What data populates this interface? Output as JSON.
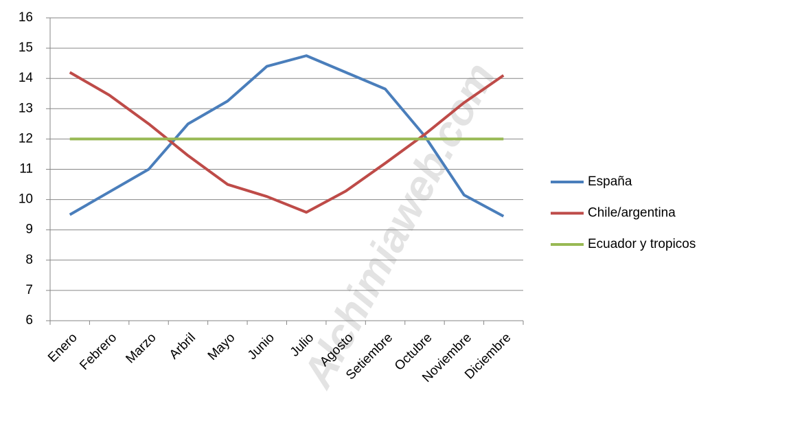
{
  "chart_data": {
    "type": "line",
    "watermark": "Alchimiaweb.com",
    "categories": [
      "Enero",
      "Febrero",
      "Marzo",
      "Arbril",
      "Mayo",
      "Junio",
      "Julio",
      "Agosto",
      "Setiembre",
      "Octubre",
      "Noviembre",
      "Diciembre"
    ],
    "series": [
      {
        "name": "España",
        "color": "#4a7ebb",
        "values": [
          9.5,
          10.25,
          11.0,
          12.5,
          13.25,
          14.4,
          14.75,
          14.2,
          13.65,
          12.1,
          10.15,
          9.45
        ]
      },
      {
        "name": "Chile/argentina",
        "color": "#be4b48",
        "values": [
          14.2,
          13.45,
          12.5,
          11.45,
          10.5,
          10.1,
          9.58,
          10.28,
          11.2,
          12.15,
          13.2,
          14.1
        ]
      },
      {
        "name": "Ecuador y tropicos",
        "color": "#98b954",
        "values": [
          12,
          12,
          12,
          12,
          12,
          12,
          12,
          12,
          12,
          12,
          12,
          12
        ]
      }
    ],
    "ylim": [
      6,
      16
    ],
    "yticks": [
      6,
      7,
      8,
      9,
      10,
      11,
      12,
      13,
      14,
      15,
      16
    ],
    "grid": true,
    "legend": "right"
  }
}
